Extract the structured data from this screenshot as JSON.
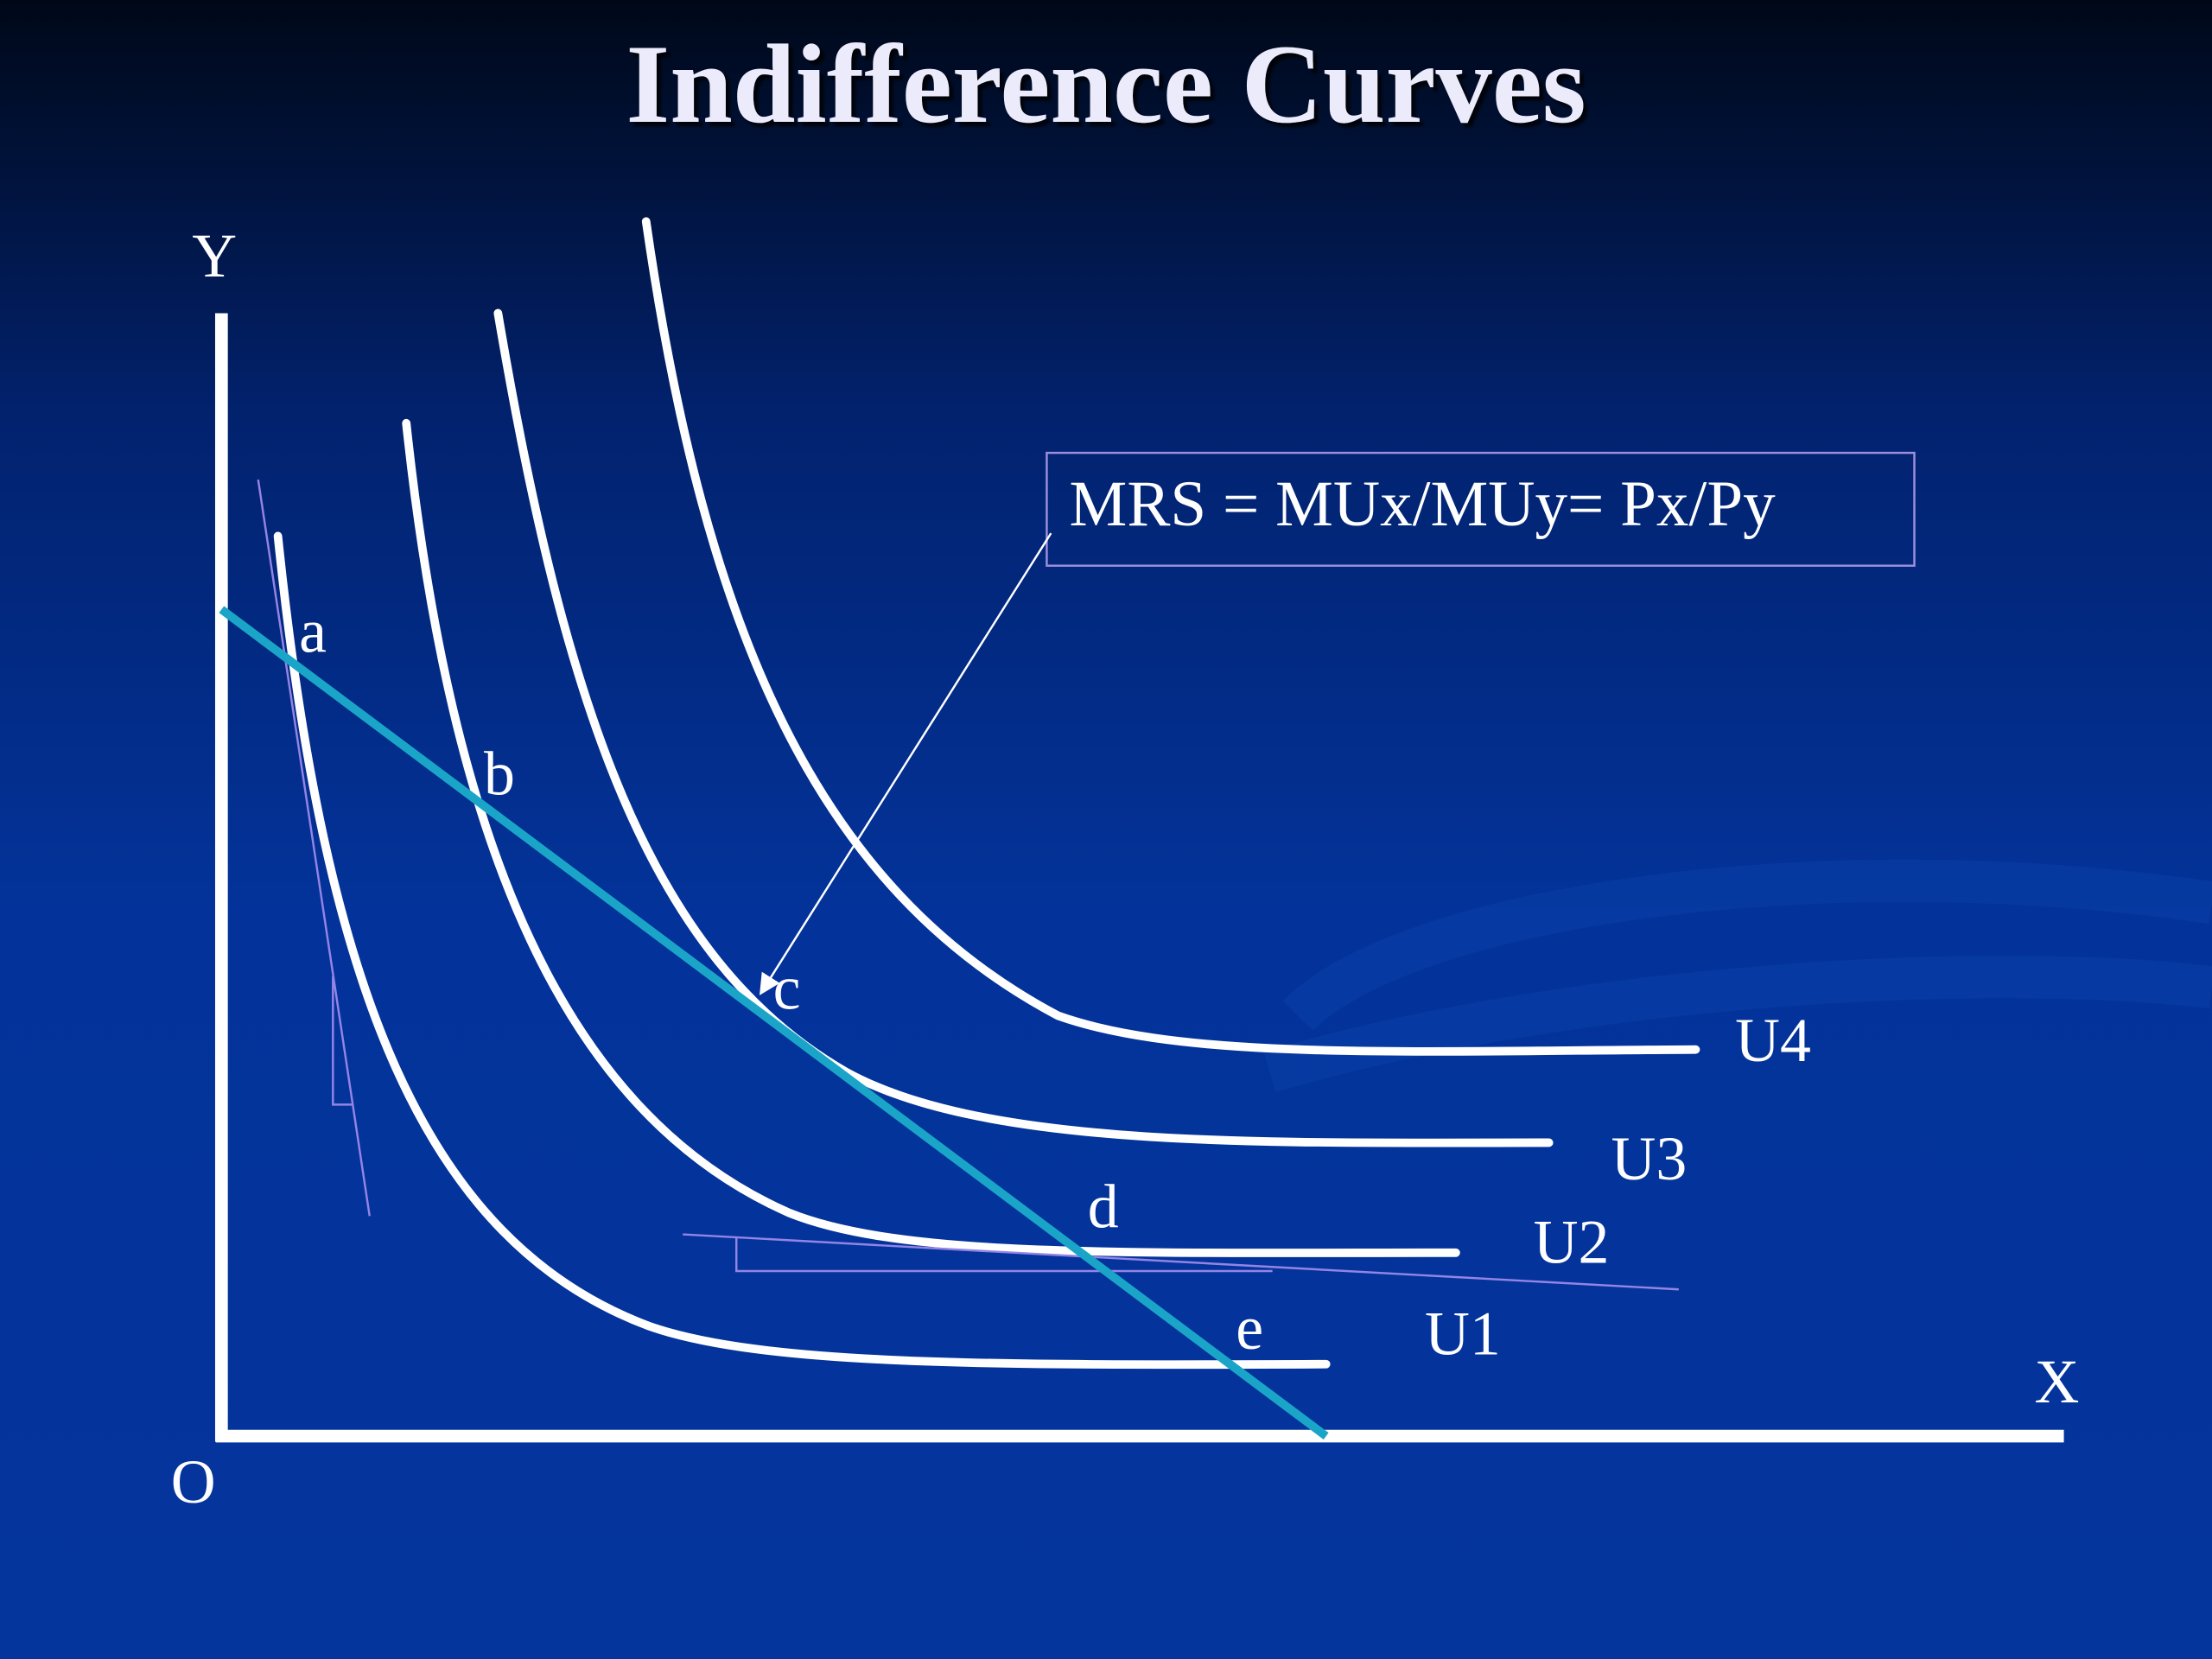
{
  "title": "Indifference Curves",
  "axes": {
    "y": "Y",
    "x": "X",
    "origin": "O"
  },
  "curves": [
    "U1",
    "U2",
    "U3",
    "U4"
  ],
  "points": [
    "a",
    "b",
    "c",
    "d",
    "e"
  ],
  "formula": "MRS = MUx/MUy= Px/Py"
}
